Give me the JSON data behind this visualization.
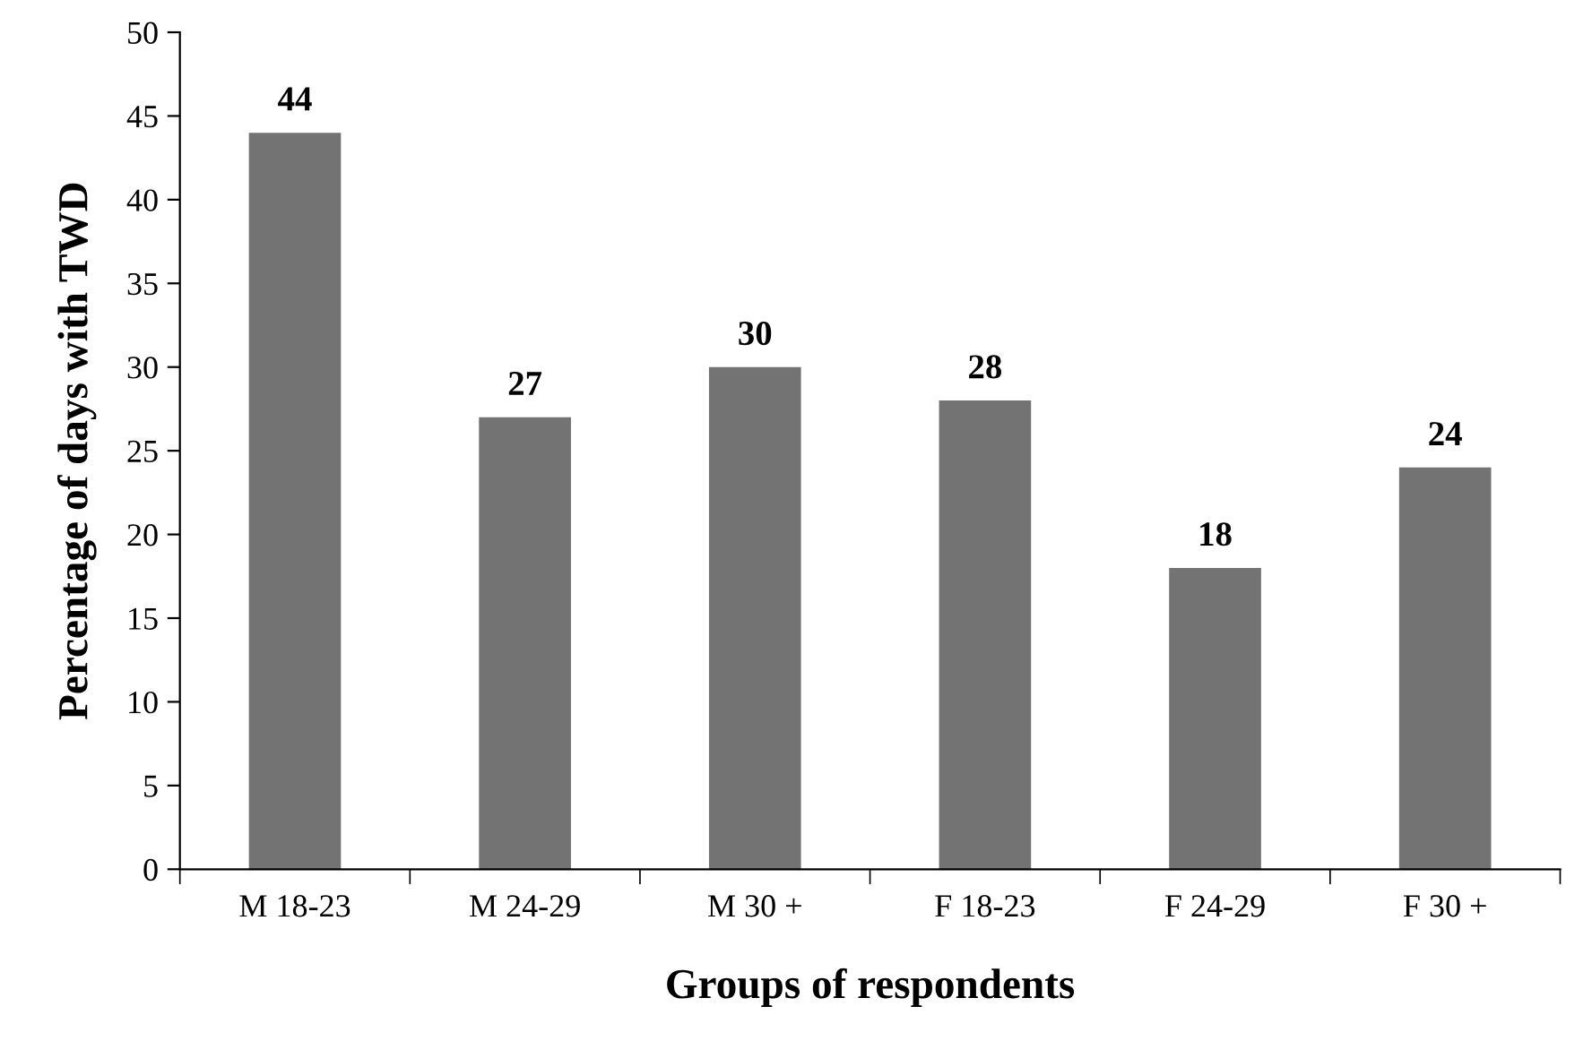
{
  "chart_data": {
    "type": "bar",
    "xlabel": "Groups of respondents",
    "ylabel": "Percentage of days with TWD",
    "categories": [
      "M 18-23",
      "M 24-29",
      "M 30 +",
      "F 18-23",
      "F 24-29",
      "F 30 +"
    ],
    "values": [
      44,
      27,
      30,
      28,
      18,
      24
    ],
    "color": "#737373",
    "ylim": [
      0,
      50
    ],
    "yticks": [
      0,
      5,
      10,
      15,
      20,
      25,
      30,
      35,
      40,
      45,
      50
    ],
    "data_labels": true,
    "grid": false,
    "legend": false
  }
}
